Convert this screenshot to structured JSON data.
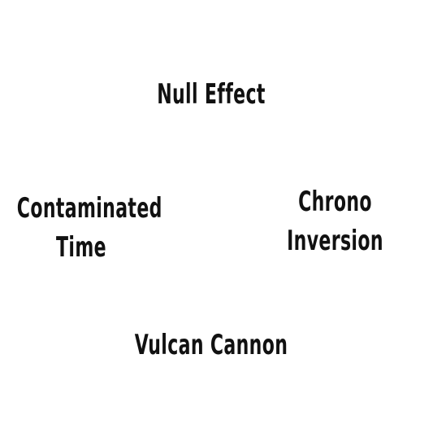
{
  "options": {
    "top": {
      "lines": [
        "Null Effect"
      ]
    },
    "left": {
      "lines": [
        "Contaminated",
        "Time"
      ]
    },
    "right": {
      "lines": [
        "Chrono",
        "Inversion"
      ]
    },
    "bottom": {
      "lines": [
        "Vulcan Cannon"
      ]
    }
  },
  "colors": {
    "background": "#ffffff",
    "text": "#111111"
  }
}
